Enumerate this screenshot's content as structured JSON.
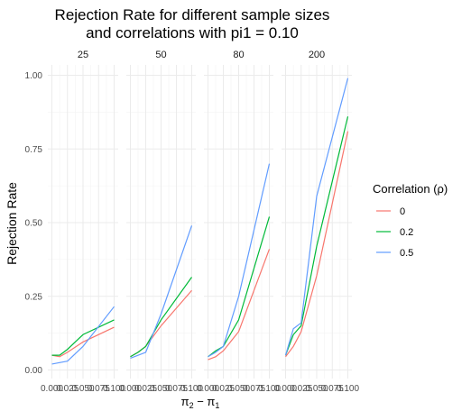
{
  "chart_data": {
    "type": "line",
    "title": "Rejection Rate for different sample sizes\nand correlations with pi1 = 0.10",
    "ylabel": "Rejection Rate",
    "xlabel": "π2 − π1",
    "xlabel_main": "π",
    "xlabel_sub1": "2",
    "xlabel_minus": " − π",
    "xlabel_sub2": "1",
    "facets": [
      "25",
      "50",
      "80",
      "200"
    ],
    "ylim": [
      0,
      1.0
    ],
    "yticks": [
      0.0,
      0.25,
      0.5,
      0.75,
      1.0
    ],
    "ytick_labels": [
      "0.00",
      "0.25",
      "0.50",
      "0.75",
      "1.00"
    ],
    "xlim": [
      0,
      0.1
    ],
    "xticks": [
      0,
      0.025,
      0.05,
      0.075,
      0.1
    ],
    "xtick_labels": [
      "0.000",
      "0.025",
      "0.050",
      "0.075",
      "0.100"
    ],
    "x": [
      0,
      0.0125,
      0.025,
      0.05,
      0.1
    ],
    "grid": true,
    "legend_title": "Correlation (ρ)",
    "legend_position": "right",
    "series": [
      {
        "name": "0",
        "color": "#F8766D",
        "panels": [
          [
            0.05,
            0.045,
            0.06,
            0.095,
            0.145
          ],
          [
            0.045,
            0.06,
            0.08,
            0.15,
            0.27
          ],
          [
            0.035,
            0.045,
            0.065,
            0.13,
            0.41
          ],
          [
            0.045,
            0.08,
            0.13,
            0.32,
            0.81
          ]
        ]
      },
      {
        "name": "0.2",
        "color": "#00BA38",
        "panels": [
          [
            0.05,
            0.05,
            0.07,
            0.12,
            0.17
          ],
          [
            0.045,
            0.06,
            0.08,
            0.17,
            0.315
          ],
          [
            0.045,
            0.065,
            0.08,
            0.17,
            0.52
          ],
          [
            0.05,
            0.12,
            0.15,
            0.42,
            0.86
          ]
        ]
      },
      {
        "name": "0.5",
        "color": "#619CFF",
        "panels": [
          [
            0.02,
            0.025,
            0.03,
            0.08,
            0.215
          ],
          [
            0.04,
            0.05,
            0.06,
            0.19,
            0.49
          ],
          [
            0.045,
            0.06,
            0.08,
            0.25,
            0.7
          ],
          [
            0.05,
            0.14,
            0.16,
            0.59,
            0.99
          ]
        ]
      }
    ]
  }
}
